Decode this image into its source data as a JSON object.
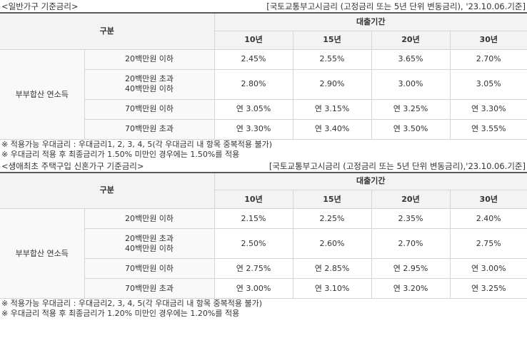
{
  "sections": [
    {
      "title": "<일반가구 기준금리>",
      "basis": "[국토교통부고시금리 (고정금리 또는 5년 단위 변동금리), '23.10.06.기준]",
      "header": {
        "category": "구분",
        "period": "대출기간",
        "terms": [
          "10년",
          "15년",
          "20년",
          "30년"
        ]
      },
      "group_label": "부부합산 연소득",
      "rows": [
        {
          "label": [
            "20백만원 이하"
          ],
          "values": [
            "2.45%",
            "2.55%",
            "3.65%",
            "2.70%"
          ]
        },
        {
          "label": [
            "20백만원 초과",
            "40백만원 이하"
          ],
          "values": [
            "2.80%",
            "2.90%",
            "3.00%",
            "3.05%"
          ]
        },
        {
          "label": [
            "70백만원 이하"
          ],
          "values": [
            "연 3.05%",
            "연 3.15%",
            "연 3.25%",
            "연 3.30%"
          ]
        },
        {
          "label": [
            "70백만원 초과"
          ],
          "values": [
            "연 3.30%",
            "연 3.40%",
            "연 3.50%",
            "연 3.55%"
          ]
        }
      ],
      "notes": [
        "※ 적용가능 우대금리 : 우대금리1, 2, 3, 4, 5(각 우대금리 내 항목 중복적용 불가)",
        "※ 우대금리 적용 후 최종금리가 1.50% 미만인 경우에는 1.50%를 적용"
      ]
    },
    {
      "title": "<생애최초 주택구입 신혼가구 기준금리>",
      "basis": "[국토교통부고시금리 (고정금리 또는 5년 단위 변동금리),'23.10.06.기준]",
      "header": {
        "category": "구분",
        "period": "대출기간",
        "terms": [
          "10년",
          "15년",
          "20년",
          "30년"
        ]
      },
      "group_label": "부부합산 연소득",
      "rows": [
        {
          "label": [
            "20백만원 이하"
          ],
          "values": [
            "2.15%",
            "2.25%",
            "2.35%",
            "2.40%"
          ]
        },
        {
          "label": [
            "20백만원 초과",
            "40백만원 이하"
          ],
          "values": [
            "2.50%",
            "2.60%",
            "2.70%",
            "2.75%"
          ]
        },
        {
          "label": [
            "70백만원 이하"
          ],
          "values": [
            "연 2.75%",
            "연 2.85%",
            "연 2.95%",
            "연 3.00%"
          ]
        },
        {
          "label": [
            "70백만원 초과"
          ],
          "values": [
            "연 3.00%",
            "연 3.10%",
            "연 3.20%",
            "연 3.25%"
          ]
        }
      ],
      "notes": [
        "※ 적용가능 우대금리 : 우대금리2, 3, 4, 5(각 우대금리 내 항목 중복적용 불가)",
        "※ 우대금리 적용 후 최종금리가 1.20% 미만인 경우에는 1.20%를 적용"
      ]
    }
  ]
}
